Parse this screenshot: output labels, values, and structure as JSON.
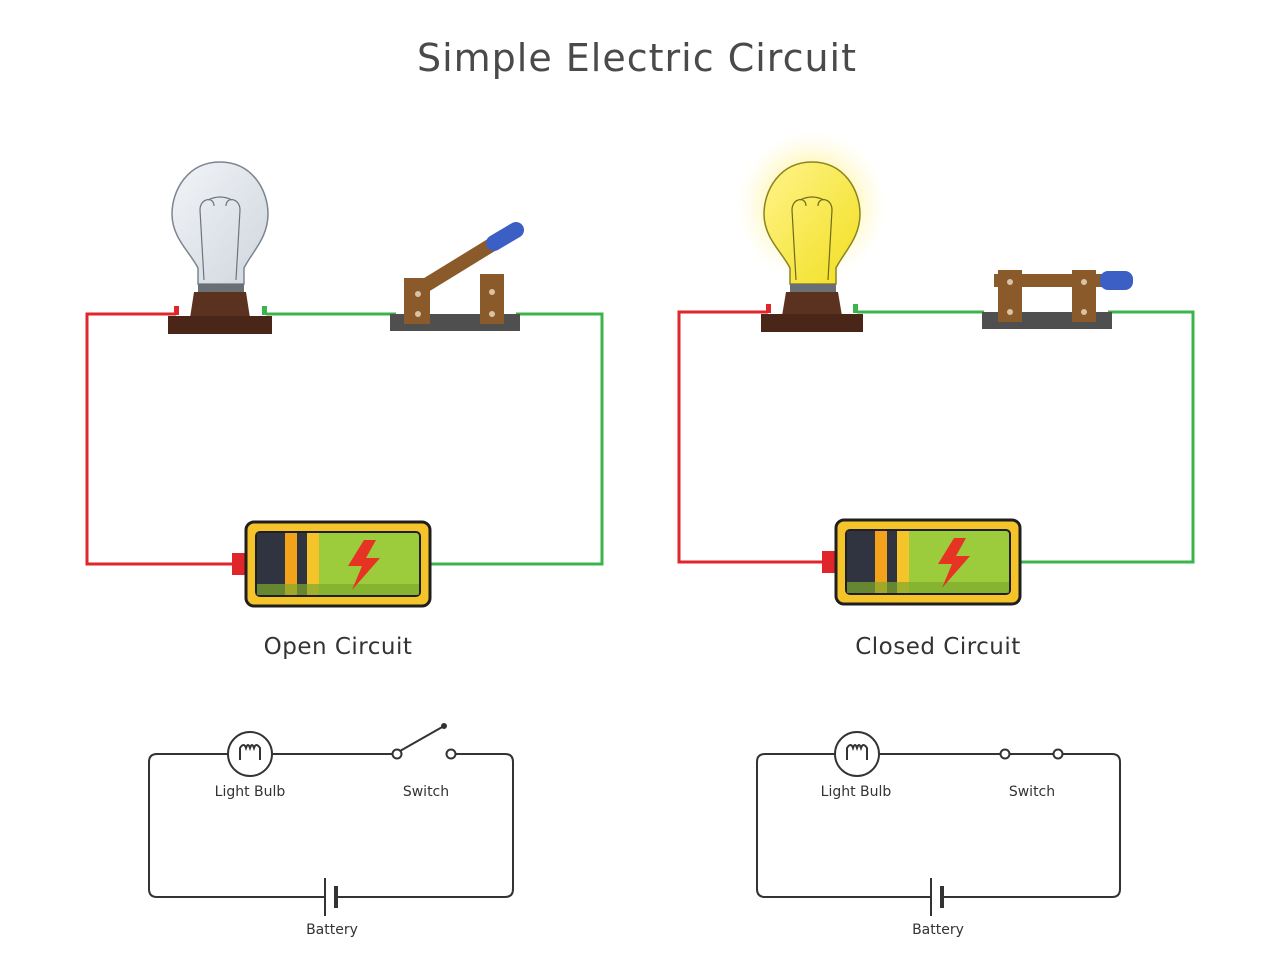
{
  "title": "Simple Electric Circuit",
  "colors": {
    "positive_wire": "#e0262a",
    "negative_wire": "#3cb44b",
    "battery_frame": "#f4c42a",
    "battery_body": "#9ccc3b",
    "bulb_off": "#dfe4ea",
    "bulb_on": "#f7ec3c",
    "switch_handle": "#8b5a2b",
    "switch_knob": "#3b5fc4",
    "schematic_line": "#333333"
  },
  "open_circuit": {
    "caption": "Open Circuit",
    "schematic": {
      "bulb_label": "Light Bulb",
      "switch_label": "Switch",
      "battery_label": "Battery"
    }
  },
  "closed_circuit": {
    "caption": "Closed Circuit",
    "schematic": {
      "bulb_label": "Light Bulb",
      "switch_label": "Switch",
      "battery_label": "Battery"
    }
  }
}
